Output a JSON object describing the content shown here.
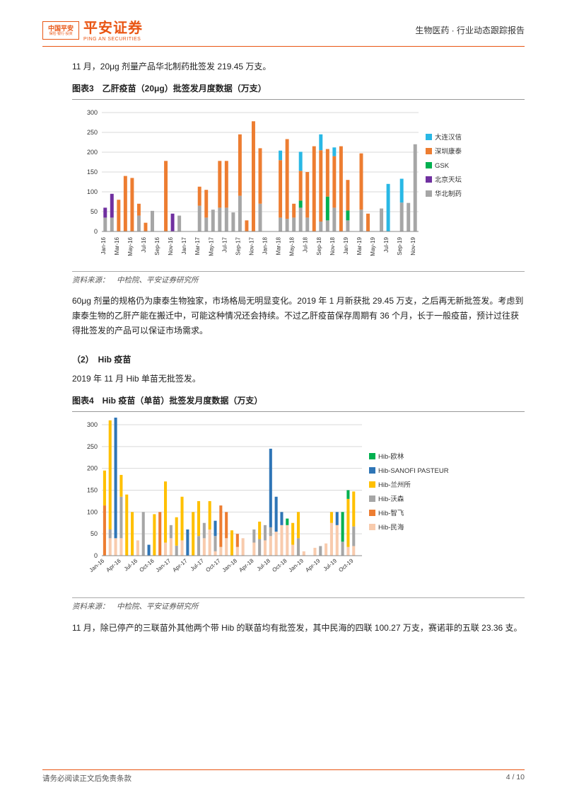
{
  "header": {
    "logo_text": "中国平安",
    "logo_sub": "保险·银行·投资",
    "brand_cn": "平安证券",
    "brand_en": "PING AN SECURITIES",
    "right": "生物医药 · 行业动态跟踪报告"
  },
  "intro_para": "11 月，20μg 剂量产品华北制药批签发 219.45 万支。",
  "chart3": {
    "title": "图表3　乙肝疫苗（20μg）批签发月度数据（万支）",
    "type": "stacked-bar",
    "ylim": [
      0,
      300
    ],
    "ytick_step": 50,
    "title_fontsize": 12,
    "label_fontsize": 10,
    "background_color": "#ffffff",
    "grid_color": "#d9d9d9",
    "bar_width": 0.52,
    "x_label_fontsize": 8,
    "categories": [
      "Jan-16",
      "Feb-16",
      "Mar-16",
      "Apr-16",
      "May-16",
      "Jun-16",
      "Jul-16",
      "Aug-16",
      "Sep-16",
      "Oct-16",
      "Nov-16",
      "Dec-16",
      "Jan-17",
      "Feb-17",
      "Mar-17",
      "Apr-17",
      "May-17",
      "Jun-17",
      "Jul-17",
      "Aug-17",
      "Sep-17",
      "Oct-17",
      "Nov-17",
      "Dec-17",
      "Jan-18",
      "Feb-18",
      "Mar-18",
      "Apr-18",
      "May-18",
      "Jun-18",
      "Jul-18",
      "Aug-18",
      "Sep-18",
      "Oct-18",
      "Nov-18",
      "Dec-18",
      "Jan-19",
      "Feb-19",
      "Mar-19",
      "Apr-19",
      "May-19",
      "Jun-19",
      "Jul-19",
      "Aug-19",
      "Sep-19",
      "Oct-19",
      "Nov-19"
    ],
    "x_labels_shown": [
      "Jan-16",
      "Mar-16",
      "May-16",
      "Jul-16",
      "Sep-16",
      "Nov-16",
      "Jan-17",
      "Mar-17",
      "May-17",
      "Jul-17",
      "Sep-17",
      "Nov-17",
      "Jan-18",
      "Mar-18",
      "May-18",
      "Jul-18",
      "Sep-18",
      "Nov-18",
      "Jan-19",
      "Mar-19",
      "May-19",
      "Jul-19",
      "Sep-19",
      "Nov-19"
    ],
    "x_label_every": 2,
    "legend": [
      {
        "name": "大连汉信",
        "color": "#29b8e5"
      },
      {
        "name": "深圳康泰",
        "color": "#ed7d31"
      },
      {
        "name": "GSK",
        "color": "#00b050"
      },
      {
        "name": "北京天坛",
        "color": "#7030a0"
      },
      {
        "name": "华北制药",
        "color": "#a6a6a6"
      }
    ],
    "series": {
      "华北制药": [
        35,
        35,
        0,
        0,
        0,
        40,
        0,
        52,
        0,
        0,
        0,
        40,
        0,
        0,
        65,
        35,
        55,
        60,
        60,
        48,
        90,
        0,
        0,
        70,
        0,
        0,
        35,
        32,
        35,
        60,
        35,
        0,
        25,
        28,
        60,
        0,
        28,
        0,
        55,
        0,
        0,
        58,
        0,
        0,
        73,
        72,
        220
      ],
      "北京天坛": [
        25,
        60,
        0,
        0,
        0,
        0,
        0,
        0,
        0,
        0,
        45,
        0,
        0,
        0,
        0,
        0,
        0,
        0,
        0,
        0,
        0,
        0,
        0,
        0,
        0,
        0,
        0,
        0,
        0,
        0,
        0,
        0,
        0,
        0,
        0,
        0,
        0,
        0,
        0,
        0,
        0,
        0,
        0,
        0,
        0,
        0,
        0
      ],
      "GSK": [
        0,
        0,
        0,
        0,
        0,
        0,
        0,
        0,
        0,
        0,
        0,
        0,
        0,
        0,
        0,
        0,
        0,
        0,
        0,
        0,
        0,
        0,
        0,
        0,
        0,
        0,
        0,
        0,
        0,
        18,
        0,
        0,
        0,
        60,
        0,
        0,
        25,
        0,
        0,
        0,
        0,
        0,
        0,
        0,
        0,
        0,
        0
      ],
      "深圳康泰": [
        0,
        0,
        80,
        140,
        135,
        30,
        22,
        0,
        0,
        178,
        0,
        0,
        0,
        0,
        48,
        70,
        0,
        118,
        118,
        0,
        155,
        28,
        278,
        140,
        0,
        0,
        145,
        201,
        35,
        75,
        115,
        215,
        180,
        120,
        130,
        215,
        77,
        0,
        142,
        45,
        0,
        0,
        0,
        0,
        0,
        0,
        0
      ],
      "大连汉信": [
        0,
        0,
        0,
        0,
        0,
        0,
        0,
        0,
        0,
        0,
        0,
        0,
        0,
        0,
        0,
        0,
        0,
        0,
        0,
        0,
        0,
        0,
        0,
        0,
        0,
        0,
        24,
        0,
        0,
        48,
        0,
        0,
        40,
        0,
        22,
        0,
        0,
        0,
        0,
        0,
        0,
        0,
        120,
        0,
        60,
        0,
        0
      ]
    },
    "stack_order": [
      "华北制药",
      "北京天坛",
      "GSK",
      "深圳康泰",
      "大连汉信"
    ],
    "source": "资料来源：　中检院、平安证券研究所"
  },
  "para_after_chart3": "60μg 剂量的规格仍为康泰生物独家，市场格局无明显变化。2019 年 1 月新获批 29.45 万支，之后再无新批签发。考虑到康泰生物的乙肝产能在搬迁中，可能这种情况还会持续。不过乙肝疫苗保存周期有 36 个月，长于一般疫苗，预计过往获得批签发的产品可以保证市场需求。",
  "section2_h": "（2）　Hib 疫苗",
  "section2_p1": "2019 年 11 月 Hib 单苗无批签发。",
  "chart4": {
    "title": "图表4　Hib 疫苗（单苗）批签发月度数据（万支）",
    "type": "stacked-bar",
    "ylim": [
      0,
      300
    ],
    "ytick_step": 50,
    "background_color": "#ffffff",
    "grid_color": "#d9d9d9",
    "bar_width": 0.52,
    "x_label_fontsize": 8,
    "x_label_rotate": -40,
    "categories": [
      "Jan-16",
      "Feb-16",
      "Mar-16",
      "Apr-16",
      "May-16",
      "Jun-16",
      "Jul-16",
      "Aug-16",
      "Sep-16",
      "Oct-16",
      "Nov-16",
      "Dec-16",
      "Jan-17",
      "Feb-17",
      "Mar-17",
      "Apr-17",
      "May-17",
      "Jun-17",
      "Jul-17",
      "Aug-17",
      "Sep-17",
      "Oct-17",
      "Nov-17",
      "Dec-17",
      "Jan-18",
      "Feb-18",
      "Mar-18",
      "Apr-18",
      "May-18",
      "Jun-18",
      "Jul-18",
      "Aug-18",
      "Sep-18",
      "Oct-18",
      "Nov-18",
      "Dec-18",
      "Jan-19",
      "Feb-19",
      "Mar-19",
      "Apr-19",
      "May-19",
      "Jun-19",
      "Jul-19",
      "Aug-19",
      "Sep-19",
      "Oct-19",
      "Nov-19"
    ],
    "x_labels_shown": [
      "Jan-16",
      "Apr-16",
      "Jul-16",
      "Oct-16",
      "Jan-17",
      "Apr-17",
      "Jul-17",
      "Oct-17",
      "Jan-18",
      "Apr-18",
      "Jul-18",
      "Oct-18",
      "Jan-19",
      "Apr-19",
      "Jul-19",
      "Oct-19"
    ],
    "x_label_every": 3,
    "legend": [
      {
        "name": "Hib-欧林",
        "color": "#00b050"
      },
      {
        "name": "Hib-SANOFI PASTEUR",
        "color": "#2e75b6"
      },
      {
        "name": "Hib-兰州所",
        "color": "#ffc000"
      },
      {
        "name": "Hib-沃森",
        "color": "#a6a6a6"
      },
      {
        "name": "Hib-智飞",
        "color": "#ed7d31"
      },
      {
        "name": "Hib-民海",
        "color": "#f8cbad"
      }
    ],
    "series": {
      "Hib-民海": [
        0,
        40,
        40,
        40,
        0,
        0,
        35,
        0,
        0,
        0,
        0,
        30,
        40,
        0,
        35,
        0,
        0,
        0,
        40,
        60,
        10,
        20,
        40,
        0,
        20,
        40,
        0,
        30,
        0,
        35,
        45,
        55,
        70,
        70,
        25,
        0,
        10,
        0,
        18,
        0,
        28,
        75,
        70,
        0,
        20,
        22,
        0
      ],
      "Hib-智飞": [
        115,
        0,
        0,
        0,
        0,
        0,
        0,
        0,
        0,
        0,
        100,
        0,
        0,
        0,
        0,
        0,
        0,
        0,
        0,
        0,
        0,
        95,
        60,
        0,
        30,
        0,
        0,
        0,
        0,
        0,
        0,
        0,
        0,
        0,
        0,
        0,
        0,
        0,
        0,
        0,
        0,
        0,
        0,
        0,
        0,
        0,
        0
      ],
      "Hib-沃森": [
        0,
        20,
        0,
        95,
        0,
        0,
        0,
        100,
        0,
        0,
        0,
        0,
        30,
        23,
        0,
        0,
        0,
        45,
        35,
        0,
        35,
        0,
        0,
        0,
        0,
        0,
        0,
        30,
        38,
        35,
        20,
        0,
        0,
        0,
        0,
        40,
        0,
        0,
        0,
        22,
        0,
        0,
        0,
        32,
        0,
        45,
        0
      ],
      "Hib-兰州所": [
        80,
        250,
        0,
        50,
        140,
        100,
        0,
        0,
        0,
        95,
        0,
        140,
        0,
        65,
        100,
        0,
        100,
        80,
        0,
        65,
        0,
        0,
        0,
        58,
        0,
        0,
        0,
        0,
        40,
        0,
        0,
        0,
        0,
        0,
        50,
        60,
        0,
        0,
        0,
        0,
        0,
        25,
        0,
        0,
        110,
        80,
        0
      ],
      "Hib-SANOFI PASTEUR": [
        0,
        0,
        295,
        0,
        0,
        0,
        0,
        0,
        25,
        0,
        0,
        0,
        0,
        0,
        0,
        60,
        0,
        0,
        0,
        0,
        35,
        0,
        0,
        0,
        0,
        0,
        0,
        0,
        0,
        0,
        180,
        80,
        30,
        0,
        0,
        0,
        0,
        0,
        0,
        0,
        0,
        0,
        30,
        0,
        0,
        0,
        0
      ],
      "Hib-欧林": [
        0,
        0,
        0,
        0,
        0,
        0,
        0,
        0,
        0,
        0,
        0,
        0,
        0,
        0,
        0,
        0,
        0,
        0,
        0,
        0,
        0,
        0,
        0,
        0,
        0,
        0,
        0,
        0,
        0,
        0,
        0,
        0,
        0,
        15,
        0,
        0,
        0,
        0,
        0,
        0,
        0,
        0,
        0,
        68,
        20,
        0,
        0
      ]
    },
    "stack_order": [
      "Hib-民海",
      "Hib-智飞",
      "Hib-沃森",
      "Hib-兰州所",
      "Hib-SANOFI PASTEUR",
      "Hib-欧林"
    ],
    "source": "资料来源：　中检院、平安证券研究所"
  },
  "section2_p2": "11 月，除已停产的三联苗外其他两个带 Hib 的联苗均有批签发，其中民海的四联 100.27 万支，赛诺菲的五联 23.36 支。",
  "footer": {
    "left": "请务必阅读正文后免责条款",
    "right": "4 / 10"
  }
}
